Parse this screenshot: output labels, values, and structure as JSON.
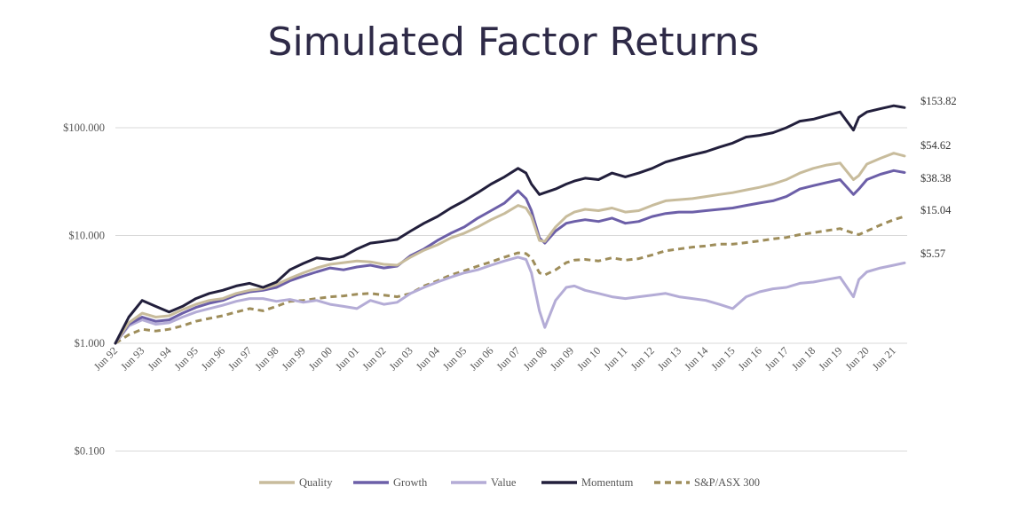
{
  "title": "Simulated Factor Returns",
  "chart_data": {
    "type": "line",
    "title": "Simulated Factor Returns",
    "y_scale": "log",
    "ylim": [
      0.1,
      200
    ],
    "y_ticks": [
      "$0.100",
      "$1.000",
      "$10.000",
      "$100.000"
    ],
    "y_tick_values": [
      0.1,
      1,
      10,
      100
    ],
    "x_ticks": [
      "Jun 92",
      "Jun 93",
      "Jun 94",
      "Jun 95",
      "Jun 96",
      "Jun 97",
      "Jun 98",
      "Jun 99",
      "Jun 00",
      "Jun 01",
      "Jun 02",
      "Jun 03",
      "Jun 04",
      "Jun 05",
      "Jun 06",
      "Jun 07",
      "Jun 08",
      "Jun 09",
      "Jun 10",
      "Jun 11",
      "Jun 12",
      "Jun 13",
      "Jun 14",
      "Jun 15",
      "Jun 16",
      "Jun 17",
      "Jun 18",
      "Jun 19",
      "Jun 20",
      "Jun 21"
    ],
    "x": [
      1992.5,
      1993.0,
      1993.5,
      1994.0,
      1994.5,
      1995.0,
      1995.5,
      1996.0,
      1996.5,
      1997.0,
      1997.5,
      1998.0,
      1998.5,
      1999.0,
      1999.5,
      2000.0,
      2000.5,
      2001.0,
      2001.5,
      2002.0,
      2002.5,
      2003.0,
      2003.5,
      2004.0,
      2004.5,
      2005.0,
      2005.5,
      2006.0,
      2006.5,
      2007.0,
      2007.5,
      2007.8,
      2008.0,
      2008.3,
      2008.5,
      2008.9,
      2009.3,
      2009.6,
      2010.0,
      2010.5,
      2011.0,
      2011.5,
      2012.0,
      2012.5,
      2013.0,
      2013.5,
      2014.0,
      2014.5,
      2015.0,
      2015.5,
      2016.0,
      2016.5,
      2017.0,
      2017.5,
      2018.0,
      2018.5,
      2019.0,
      2019.5,
      2020.0,
      2020.2,
      2020.5,
      2021.0,
      2021.5,
      2021.9
    ],
    "legend_position": "bottom",
    "grid": true,
    "series": [
      {
        "name": "Quality",
        "color": "#c8bc9c",
        "style": "solid",
        "end_label": "$54.62",
        "values": [
          1.0,
          1.55,
          1.9,
          1.75,
          1.8,
          2.05,
          2.3,
          2.5,
          2.6,
          2.9,
          3.1,
          3.2,
          3.5,
          4.0,
          4.5,
          5.0,
          5.4,
          5.6,
          5.8,
          5.7,
          5.4,
          5.3,
          6.3,
          7.3,
          8.2,
          9.5,
          10.5,
          12.0,
          14.0,
          16.0,
          19.0,
          18.0,
          15.0,
          9.0,
          8.8,
          12.0,
          15.0,
          16.5,
          17.5,
          17.0,
          18.0,
          16.5,
          17.0,
          19.0,
          21.0,
          21.5,
          22.0,
          23.0,
          24.0,
          25.0,
          26.5,
          28.0,
          30.0,
          33.0,
          38.0,
          42.0,
          45.0,
          47.0,
          33.0,
          36.0,
          46.0,
          52.0,
          58.0,
          54.62
        ]
      },
      {
        "name": "Growth",
        "color": "#6c5fa8",
        "style": "solid",
        "end_label": "$38.38",
        "values": [
          1.0,
          1.5,
          1.75,
          1.6,
          1.65,
          1.9,
          2.15,
          2.35,
          2.5,
          2.8,
          3.0,
          3.1,
          3.3,
          3.8,
          4.2,
          4.6,
          5.0,
          4.8,
          5.1,
          5.3,
          5.0,
          5.2,
          6.5,
          7.5,
          9.0,
          10.5,
          12.0,
          14.5,
          17.0,
          20.0,
          26.0,
          22.0,
          17.0,
          9.5,
          8.5,
          11.0,
          13.0,
          13.5,
          14.0,
          13.5,
          14.5,
          13.0,
          13.5,
          15.0,
          16.0,
          16.5,
          16.5,
          17.0,
          17.5,
          18.0,
          19.0,
          20.0,
          21.0,
          23.0,
          27.0,
          29.0,
          31.0,
          33.0,
          24.0,
          27.0,
          33.0,
          37.0,
          40.0,
          38.38
        ]
      },
      {
        "name": "Value",
        "color": "#b4acd6",
        "style": "solid",
        "end_label": "$5.57",
        "values": [
          1.0,
          1.45,
          1.65,
          1.5,
          1.55,
          1.75,
          1.95,
          2.1,
          2.25,
          2.45,
          2.6,
          2.6,
          2.45,
          2.55,
          2.4,
          2.5,
          2.3,
          2.2,
          2.1,
          2.5,
          2.3,
          2.4,
          2.9,
          3.3,
          3.7,
          4.1,
          4.5,
          4.8,
          5.3,
          5.8,
          6.3,
          6.0,
          4.5,
          2.0,
          1.4,
          2.5,
          3.3,
          3.4,
          3.1,
          2.9,
          2.7,
          2.6,
          2.7,
          2.8,
          2.9,
          2.7,
          2.6,
          2.5,
          2.3,
          2.1,
          2.7,
          3.0,
          3.2,
          3.3,
          3.6,
          3.7,
          3.9,
          4.1,
          2.7,
          3.9,
          4.6,
          5.0,
          5.3,
          5.57
        ]
      },
      {
        "name": "Momentum",
        "color": "#221f3c",
        "style": "solid",
        "end_label": "$153.82",
        "values": [
          1.0,
          1.75,
          2.5,
          2.2,
          1.95,
          2.2,
          2.6,
          2.9,
          3.1,
          3.4,
          3.6,
          3.3,
          3.7,
          4.8,
          5.5,
          6.2,
          6.0,
          6.4,
          7.5,
          8.5,
          8.8,
          9.2,
          11.0,
          13.0,
          15.0,
          18.0,
          21.0,
          25.0,
          30.0,
          35.0,
          42.0,
          38.0,
          30.0,
          24.0,
          25.0,
          27.0,
          30.0,
          32.0,
          34.0,
          33.0,
          38.0,
          35.0,
          38.0,
          42.0,
          48.0,
          52.0,
          56.0,
          60.0,
          66.0,
          72.0,
          82.0,
          85.0,
          90.0,
          100.0,
          115.0,
          120.0,
          130.0,
          140.0,
          95.0,
          125.0,
          140.0,
          150.0,
          160.0,
          153.82
        ]
      },
      {
        "name": "S&P/ASX 300",
        "color": "#9e8d5a",
        "style": "dashed",
        "end_label": "$15.04",
        "values": [
          1.0,
          1.2,
          1.35,
          1.3,
          1.35,
          1.45,
          1.6,
          1.7,
          1.8,
          1.95,
          2.1,
          2.0,
          2.2,
          2.45,
          2.5,
          2.6,
          2.7,
          2.75,
          2.85,
          2.9,
          2.8,
          2.7,
          2.9,
          3.4,
          3.8,
          4.3,
          4.7,
          5.2,
          5.7,
          6.3,
          6.9,
          6.8,
          6.2,
          4.5,
          4.3,
          4.8,
          5.6,
          5.9,
          6.0,
          5.8,
          6.2,
          5.9,
          6.1,
          6.6,
          7.2,
          7.5,
          7.8,
          8.0,
          8.3,
          8.3,
          8.6,
          8.9,
          9.3,
          9.6,
          10.2,
          10.6,
          11.1,
          11.6,
          10.5,
          10.2,
          11.0,
          12.5,
          14.0,
          15.04
        ]
      }
    ]
  }
}
